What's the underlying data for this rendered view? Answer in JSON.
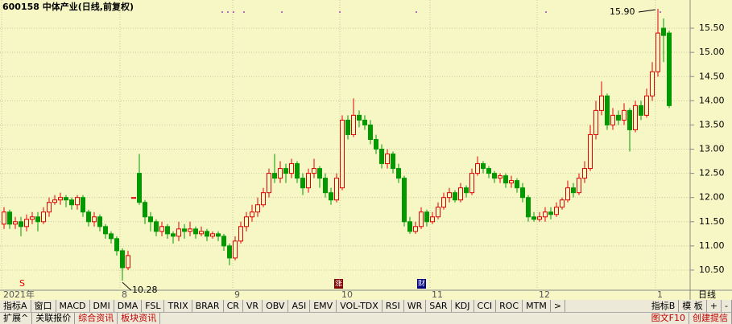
{
  "chart_data": {
    "type": "candlestick",
    "title": "600158 中体产业(日线,前复权)",
    "period_label": "日线",
    "x_labels": [
      "2021年",
      "8",
      "9",
      "10",
      "11",
      "12",
      "1"
    ],
    "annotations": [
      "15.90",
      "10.28"
    ],
    "event_markers": [
      "S",
      "涨",
      "财"
    ],
    "ylim": [
      10.2,
      15.95
    ],
    "yticks": [
      {
        "value": 10.5,
        "label": "10.50"
      },
      {
        "value": 11,
        "label": "11.00"
      },
      {
        "value": 11.5,
        "label": "11.50"
      },
      {
        "value": 12,
        "label": "12.00"
      },
      {
        "value": 12.5,
        "label": "12.50"
      },
      {
        "value": 13,
        "label": "13.00"
      },
      {
        "value": 13.5,
        "label": "13.50"
      },
      {
        "value": 14,
        "label": "14.00"
      },
      {
        "value": 14.5,
        "label": "14.50"
      },
      {
        "value": 15,
        "label": "15.00"
      },
      {
        "value": 15.5,
        "label": "15.50"
      }
    ],
    "grid": true,
    "up_color": "#e00000",
    "down_color": "#009a00",
    "open": [
      11.45,
      11.7,
      11.45,
      11.5,
      11.4,
      11.55,
      11.6,
      11.5,
      11.7,
      11.9,
      11.95,
      12.0,
      11.95,
      11.85,
      12.0,
      11.7,
      11.5,
      11.6,
      11.4,
      11.25,
      11.15,
      10.9,
      10.55,
      12.0,
      12.5,
      11.9,
      11.6,
      11.5,
      11.3,
      11.4,
      11.25,
      11.2,
      11.35,
      11.3,
      11.35,
      11.25,
      11.3,
      11.2,
      11.25,
      11.2,
      11.0,
      10.75,
      11.1,
      11.4,
      11.6,
      11.7,
      11.85,
      12.1,
      12.5,
      12.4,
      12.6,
      12.5,
      12.7,
      12.4,
      12.2,
      12.5,
      12.6,
      12.4,
      12.1,
      11.95,
      12.2,
      13.6,
      13.3,
      13.7,
      13.6,
      13.5,
      13.2,
      13.0,
      12.7,
      12.9,
      12.6,
      12.4,
      11.5,
      11.3,
      11.4,
      11.7,
      11.5,
      11.6,
      11.8,
      12.0,
      12.1,
      11.95,
      12.2,
      12.1,
      12.5,
      12.7,
      12.6,
      12.5,
      12.4,
      12.45,
      12.3,
      12.35,
      12.2,
      12.0,
      11.6,
      11.55,
      11.6,
      11.7,
      11.65,
      11.8,
      11.95,
      12.2,
      12.1,
      12.4,
      12.6,
      13.3,
      13.8,
      14.1,
      13.5,
      13.7,
      13.6,
      13.8,
      13.4,
      13.9,
      13.7,
      14.1,
      14.6,
      15.5,
      15.4
    ],
    "high": [
      11.8,
      11.75,
      11.6,
      11.6,
      11.65,
      11.7,
      11.7,
      11.8,
      12.0,
      12.05,
      12.1,
      12.05,
      12.0,
      12.05,
      12.05,
      11.75,
      11.7,
      11.65,
      11.45,
      11.3,
      11.2,
      10.95,
      10.9,
      12.0,
      12.9,
      11.95,
      11.7,
      11.55,
      11.5,
      11.45,
      11.3,
      11.5,
      11.45,
      11.5,
      11.4,
      11.4,
      11.35,
      11.3,
      11.3,
      11.25,
      11.05,
      11.2,
      11.5,
      11.7,
      11.85,
      12.0,
      12.2,
      12.6,
      12.9,
      12.75,
      12.7,
      12.8,
      12.75,
      12.5,
      12.6,
      12.8,
      12.65,
      12.5,
      12.2,
      12.5,
      13.7,
      13.7,
      14.05,
      13.8,
      13.7,
      13.6,
      13.3,
      13.1,
      13.0,
      12.95,
      12.7,
      12.45,
      11.6,
      11.5,
      11.8,
      11.75,
      11.7,
      11.9,
      12.1,
      12.2,
      12.15,
      12.3,
      12.25,
      12.6,
      12.85,
      12.75,
      12.65,
      12.55,
      12.5,
      12.5,
      12.45,
      12.4,
      12.3,
      12.05,
      11.7,
      11.7,
      11.8,
      11.8,
      11.9,
      12.0,
      12.35,
      12.3,
      12.5,
      12.75,
      13.5,
      14.0,
      14.4,
      14.15,
      13.85,
      13.8,
      13.95,
      13.85,
      14.0,
      14.0,
      14.25,
      14.8,
      15.9,
      15.7,
      15.45
    ],
    "low": [
      11.35,
      11.35,
      11.35,
      11.2,
      11.3,
      11.45,
      11.3,
      11.45,
      11.6,
      11.85,
      11.85,
      11.8,
      11.75,
      11.75,
      11.6,
      11.4,
      11.4,
      11.3,
      11.15,
      11.05,
      10.8,
      10.28,
      10.5,
      12.0,
      11.85,
      11.45,
      11.3,
      11.2,
      11.2,
      11.15,
      11.05,
      11.1,
      11.15,
      11.2,
      11.15,
      11.2,
      11.1,
      11.15,
      11.1,
      10.9,
      10.6,
      10.7,
      11.05,
      11.3,
      11.5,
      11.6,
      11.8,
      12.0,
      12.3,
      12.3,
      12.3,
      12.4,
      12.3,
      12.05,
      12.1,
      12.4,
      12.2,
      12.0,
      11.85,
      11.9,
      12.15,
      13.2,
      13.25,
      13.45,
      13.4,
      13.1,
      12.9,
      12.6,
      12.6,
      12.5,
      12.3,
      11.4,
      11.25,
      11.25,
      11.35,
      11.4,
      11.45,
      11.55,
      11.75,
      11.9,
      11.9,
      11.9,
      12.0,
      12.05,
      12.45,
      12.5,
      12.4,
      12.3,
      12.3,
      12.2,
      12.2,
      12.1,
      11.9,
      11.5,
      11.5,
      11.5,
      11.5,
      11.55,
      11.6,
      11.75,
      11.9,
      12.0,
      12.05,
      12.3,
      12.55,
      13.2,
      13.7,
      13.4,
      13.4,
      13.5,
      13.5,
      12.95,
      13.35,
      13.6,
      13.65,
      14.0,
      14.5,
      14.8,
      13.85
    ],
    "close": [
      11.7,
      11.45,
      11.5,
      11.4,
      11.55,
      11.6,
      11.5,
      11.7,
      11.9,
      11.95,
      12.0,
      11.95,
      11.85,
      12.0,
      11.7,
      11.5,
      11.6,
      11.4,
      11.25,
      11.15,
      10.9,
      10.55,
      10.8,
      12.0,
      11.9,
      11.6,
      11.5,
      11.3,
      11.4,
      11.25,
      11.2,
      11.35,
      11.3,
      11.35,
      11.25,
      11.3,
      11.2,
      11.25,
      11.2,
      11.0,
      10.75,
      11.1,
      11.4,
      11.6,
      11.7,
      11.85,
      12.1,
      12.5,
      12.4,
      12.6,
      12.5,
      12.7,
      12.4,
      12.2,
      12.5,
      12.6,
      12.4,
      12.1,
      11.95,
      12.4,
      13.6,
      13.3,
      13.7,
      13.6,
      13.5,
      13.2,
      13.0,
      12.7,
      12.9,
      12.6,
      12.4,
      11.5,
      11.3,
      11.4,
      11.7,
      11.5,
      11.6,
      11.8,
      12.0,
      12.1,
      11.95,
      12.2,
      12.1,
      12.5,
      12.7,
      12.6,
      12.5,
      12.4,
      12.45,
      12.3,
      12.35,
      12.2,
      12.0,
      11.6,
      11.55,
      11.6,
      11.7,
      11.65,
      11.8,
      11.95,
      12.2,
      12.1,
      12.4,
      12.6,
      13.3,
      13.8,
      14.1,
      13.5,
      13.7,
      13.6,
      13.8,
      13.4,
      13.9,
      13.7,
      14.1,
      14.6,
      15.4,
      15.35,
      13.9
    ]
  },
  "toolbar": {
    "tabs_a": [
      "指标A",
      "窗口",
      "MACD",
      "DMI",
      "DMA",
      "FSL",
      "TRIX",
      "BRAR",
      "CR",
      "VR",
      "OBV",
      "ASI",
      "EMV",
      "VOL-TDX",
      "RSI",
      "WR",
      "SAR",
      "KDJ",
      "CCI",
      "ROC",
      "MTM",
      ">"
    ],
    "tabs_b": [
      "指标B",
      "模 板",
      "+",
      "-"
    ],
    "bottom_left": [
      "扩展^",
      "关联报价",
      "综合资讯",
      "板块资讯"
    ],
    "bottom_right": [
      "图文F10",
      "创建提信"
    ]
  }
}
